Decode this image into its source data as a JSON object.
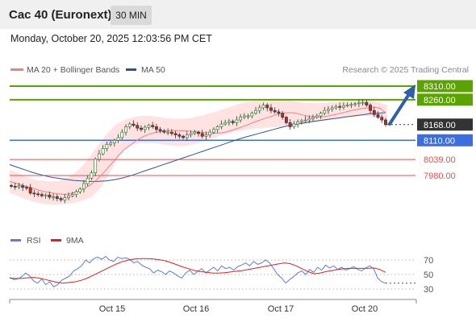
{
  "header": {
    "instrument": "Cac 40 (Euronext)",
    "timeframe": "30 MIN",
    "datetime": "Monday, October 20, 2025 12:03:56 PM CET"
  },
  "colors": {
    "bull": "#2d8a2d",
    "bear": "#c62828",
    "ma20": "#f08080",
    "ma50": "#2f5597",
    "bands": "#ffdede",
    "resistance": "#5aa300",
    "support": "#3b6fe0",
    "current": "#333333",
    "minor": "#e05050",
    "rsi": "#5b7fd6",
    "rsi_ma": "#e02020"
  },
  "chart_data": [
    {
      "type": "candlestick",
      "title": "",
      "legend": [
        "MA 20 + Bollinger Bands",
        "MA 50"
      ],
      "credit": "Research © 2025 Trading Central",
      "x_ticks": [
        "Oct 15",
        "Oct 16",
        "Oct 17",
        "Oct 20"
      ],
      "ylim": [
        7900,
        8340
      ],
      "levels": [
        {
          "value": 8310,
          "label": "8310.00",
          "kind": "resistance"
        },
        {
          "value": 8260,
          "label": "8260.00",
          "kind": "resistance"
        },
        {
          "value": 8168,
          "label": "8168.00",
          "kind": "current"
        },
        {
          "value": 8110,
          "label": "8110.00",
          "kind": "support"
        },
        {
          "value": 8039,
          "label": "8039.00",
          "kind": "minor"
        },
        {
          "value": 7980,
          "label": "7980.00",
          "kind": "minor"
        }
      ],
      "close_series": [
        7940,
        7938,
        7942,
        7936,
        7935,
        7915,
        7912,
        7910,
        7905,
        7908,
        7900,
        7902,
        7895,
        7890,
        7898,
        7905,
        7910,
        7920,
        7930,
        7950,
        7970,
        7990,
        8040,
        8060,
        8080,
        8095,
        8100,
        8110,
        8120,
        8140,
        8160,
        8170,
        8165,
        8155,
        8150,
        8158,
        8165,
        8160,
        8150,
        8145,
        8140,
        8140,
        8135,
        8130,
        8125,
        8120,
        8130,
        8135,
        8140,
        8135,
        8125,
        8130,
        8140,
        8150,
        8160,
        8170,
        8175,
        8180,
        8175,
        8185,
        8195,
        8200,
        8200,
        8210,
        8220,
        8230,
        8240,
        8230,
        8220,
        8215,
        8210,
        8195,
        8175,
        8160,
        8170,
        8178,
        8182,
        8185,
        8190,
        8195,
        8200,
        8210,
        8220,
        8225,
        8230,
        8235,
        8232,
        8238,
        8240,
        8242,
        8245,
        8248,
        8250,
        8240,
        8220,
        8205,
        8195,
        8185,
        8168
      ],
      "ma20": [
        7958,
        7952,
        7946,
        7940,
        7934,
        7928,
        7922,
        7918,
        7915,
        7912,
        7910,
        7912,
        7918,
        7925,
        7935,
        7948,
        7965,
        7985,
        8008,
        8030,
        8055,
        8075,
        8090,
        8105,
        8118,
        8128,
        8135,
        8140,
        8143,
        8145,
        8146,
        8146,
        8145,
        8144,
        8142,
        8140,
        8138,
        8136,
        8136,
        8138,
        8142,
        8148,
        8155,
        8162,
        8170,
        8178,
        8185,
        8192,
        8198,
        8205,
        8210,
        8212,
        8212,
        8208,
        8202,
        8198,
        8196,
        8196,
        8198,
        8202,
        8206,
        8211,
        8216,
        8221,
        8225,
        8228,
        8231,
        8233,
        8228,
        8212
      ],
      "ma20_x_start": 12,
      "ma20_x_step": 6.75,
      "ma50": [
        8020,
        8010,
        8000,
        7990,
        7982,
        7975,
        7970,
        7966,
        7962,
        7960,
        7958,
        7958,
        7960,
        7964,
        7970,
        7978,
        7988,
        7998,
        8008,
        8018,
        8028,
        8038,
        8048,
        8058,
        8068,
        8078,
        8088,
        8098,
        8108,
        8118,
        8126,
        8134,
        8142,
        8150,
        8158,
        8165,
        8170,
        8175,
        8180,
        8184,
        8188,
        8192,
        8196,
        8200,
        8204,
        8208,
        8210,
        8212
      ],
      "bb_upper": [
        8000,
        7990,
        7975,
        7965,
        7960,
        7958,
        7960,
        7972,
        7990,
        8020,
        8060,
        8100,
        8140,
        8170,
        8185,
        8195,
        8200,
        8200,
        8196,
        8192,
        8190,
        8190,
        8192,
        8198,
        8206,
        8215,
        8225,
        8235,
        8245,
        8252,
        8258,
        8260,
        8262,
        8262,
        8258,
        8252,
        8248,
        8247,
        8248,
        8250,
        8253,
        8256,
        8258,
        8259,
        8258,
        8250,
        8240
      ],
      "bb_lower": [
        7915,
        7905,
        7892,
        7882,
        7876,
        7872,
        7872,
        7876,
        7880,
        7888,
        7900,
        7930,
        7980,
        8035,
        8075,
        8095,
        8100,
        8100,
        8098,
        8094,
        8090,
        8088,
        8092,
        8100,
        8110,
        8120,
        8130,
        8138,
        8145,
        8150,
        8154,
        8156,
        8158,
        8160,
        8164,
        8168,
        8172,
        8176,
        8180,
        8185,
        8190,
        8195,
        8198,
        8200,
        8198,
        8190,
        8178
      ]
    },
    {
      "type": "line",
      "title": "",
      "legend": [
        "RSI",
        "9MA"
      ],
      "ylim": [
        25,
        80
      ],
      "y_ticks": [
        70,
        50,
        30
      ],
      "rsi": [
        46,
        43,
        44,
        47,
        52,
        48,
        41,
        38,
        44,
        36,
        40,
        33,
        36,
        42,
        45,
        48,
        55,
        58,
        62,
        70,
        66,
        72,
        74,
        71,
        75,
        70,
        68,
        74,
        72,
        73,
        71,
        66,
        68,
        63,
        60,
        58,
        52,
        56,
        54,
        50,
        55,
        52,
        48,
        45,
        52,
        56,
        50,
        54,
        58,
        52,
        56,
        60,
        55,
        62,
        58,
        60,
        56,
        61,
        63,
        66,
        62,
        68,
        64,
        66,
        70,
        66,
        58,
        50,
        45,
        38,
        43,
        47,
        52,
        55,
        50,
        57,
        53,
        60,
        56,
        63,
        59,
        62,
        57,
        60,
        56,
        58,
        61,
        57,
        55,
        59,
        62,
        58,
        45,
        40,
        38
      ],
      "rsi_ma": [
        45,
        44.5,
        44.5,
        45.5,
        46,
        45,
        43,
        41,
        39,
        38,
        39,
        40,
        42,
        45,
        49,
        53,
        57,
        61,
        65,
        68,
        70,
        71.5,
        72,
        72,
        71.5,
        70.5,
        69,
        66.5,
        63.5,
        60.5,
        58,
        55.5,
        54,
        53,
        52,
        52,
        52.5,
        53.5,
        54.5,
        55.5,
        57,
        58.5,
        60,
        61.5,
        63,
        64.5,
        66,
        65,
        62,
        58,
        54,
        51,
        52,
        54,
        55.5,
        57,
        58,
        58.5,
        58.5,
        58.5,
        58.5,
        59,
        57,
        53
      ],
      "rsi_ma_x_start": 12,
      "rsi_ma_x_step": 7.2
    }
  ]
}
